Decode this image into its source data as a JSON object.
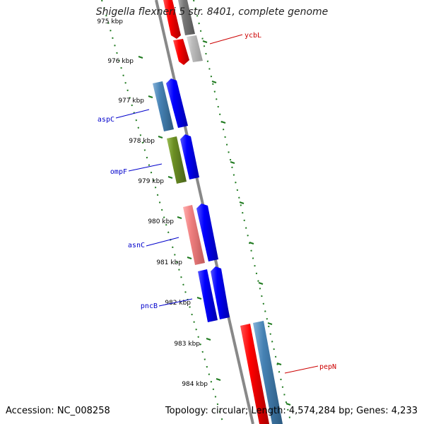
{
  "header": {
    "title": "Shigella flexneri 5 str. 8401, complete genome"
  },
  "footer": {
    "accession": "Accession: NC_008258",
    "summary": "Topology: circular; Length: 4,574,284 bp; Genes: 4,233"
  },
  "map": {
    "scale_labels": [
      "975 kbp",
      "976 kbp",
      "977 kbp",
      "978 kbp",
      "979 kbp",
      "980 kbp",
      "981 kbp",
      "982 kbp",
      "983 kbp",
      "984 kbp"
    ],
    "genes": [
      {
        "label": "ycbL",
        "color": "#cc0000"
      },
      {
        "label": "aspC",
        "color": "#0000cc"
      },
      {
        "label": "ompF",
        "color": "#0000cc"
      },
      {
        "label": "asnC",
        "color": "#0000cc"
      },
      {
        "label": "pncB",
        "color": "#0000cc"
      },
      {
        "label": "pepN",
        "color": "#cc0000"
      }
    ],
    "colors": {
      "backbone": "#888888",
      "tick": "#1f7a1f",
      "forward_cds": "#0000ff",
      "reverse_cds": "#ff0000",
      "steelblue": "#4682b4",
      "olive": "#6b8e23",
      "salmon": "#f08080",
      "grey": "#777777",
      "light_grey": "#bbbbbb"
    }
  }
}
